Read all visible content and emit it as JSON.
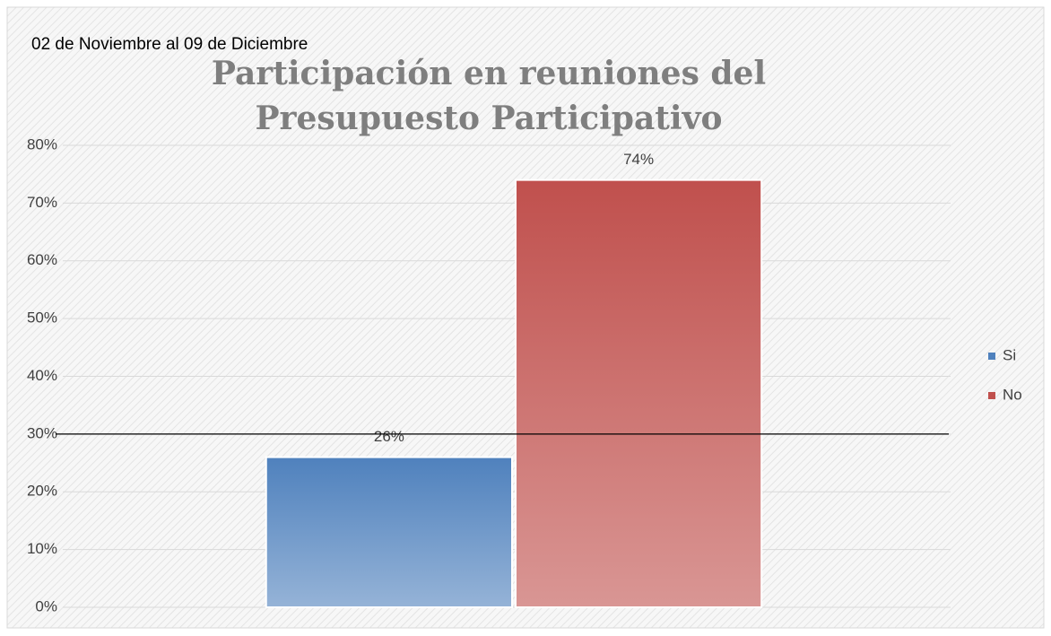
{
  "chart_data": {
    "type": "bar",
    "title": "Participación en reuniones del Presupuesto Participativo",
    "annotation": "02 de Noviembre al 09 de Diciembre",
    "categories": [
      null
    ],
    "series": [
      {
        "name": "Si",
        "color": "#4f81bd",
        "values": [
          26
        ],
        "value_labels": [
          "26%"
        ]
      },
      {
        "name": "No",
        "color": "#c0504d",
        "values": [
          74
        ],
        "value_labels": [
          "74%"
        ]
      }
    ],
    "ylim": [
      0,
      80
    ],
    "yticks": [
      {
        "value": 0,
        "label": "0%"
      },
      {
        "value": 10,
        "label": "10%"
      },
      {
        "value": 20,
        "label": "20%"
      },
      {
        "value": 30,
        "label": "30%"
      },
      {
        "value": 40,
        "label": "40%"
      },
      {
        "value": 50,
        "label": "50%"
      },
      {
        "value": 60,
        "label": "60%"
      },
      {
        "value": 70,
        "label": "70%"
      },
      {
        "value": 80,
        "label": "80%"
      }
    ],
    "grid": true,
    "legend": "right",
    "reference_line": {
      "value": 30,
      "color": "#000000"
    }
  }
}
